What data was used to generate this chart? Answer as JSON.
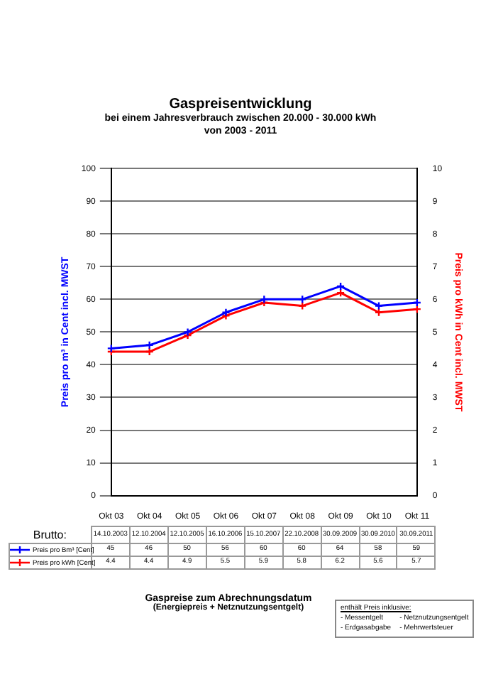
{
  "chart_data": {
    "type": "line",
    "title": "Gaspreisentwicklung",
    "subtitle": "bei einem Jahresverbrauch zwischen 20.000 - 30.000 kWh\nvon 2003 - 2011",
    "categories": [
      "Okt 03",
      "Okt 04",
      "Okt 05",
      "Okt 06",
      "Okt 07",
      "Okt 08",
      "Okt 09",
      "Okt 10",
      "Okt 11"
    ],
    "series": [
      {
        "name": "Preis pro Bm³ [Cent]",
        "color": "#0000ff",
        "values": [
          45,
          46,
          50,
          56,
          60,
          60,
          64,
          58,
          59
        ]
      },
      {
        "name": "Preis pro kWh [Cent]",
        "color": "#ff0000",
        "axis": "y2",
        "values": [
          4.4,
          4.4,
          4.9,
          5.5,
          5.9,
          5.8,
          6.2,
          5.6,
          5.7
        ]
      }
    ],
    "ylabel": "Preis pro m³ in Cent incl. MWST",
    "y2label": "Preis pro kWh in Cent incl. MWST",
    "ylim": [
      0,
      100
    ],
    "yticks": [
      0,
      10,
      20,
      30,
      40,
      50,
      60,
      70,
      80,
      90,
      100
    ],
    "y2lim": [
      0,
      10
    ],
    "y2ticks": [
      0,
      1,
      2,
      3,
      4,
      5,
      6,
      7,
      8,
      9,
      10
    ],
    "grid": "y",
    "marker": "cross",
    "line_style": "solid",
    "legend": "bottom",
    "data_labels": true,
    "annotations": [
      "Brutto:",
      "14.10.2003",
      "12.10.2004",
      "12.10.2005",
      "16.10.2006",
      "15.10.2007",
      "22.10.2008",
      "30.09.2009",
      "30.09.2010",
      "30.09.2011",
      "Gaspreise zum Abrechnungsdatum",
      "(Energiepreis + Netznutzungsentgelt)",
      "enthält Preis inklusive:",
      "- Messentgelt",
      "- Netznutzungsentgelt",
      "- Erdgasabgabe",
      "- Mehrwertsteuer"
    ]
  }
}
